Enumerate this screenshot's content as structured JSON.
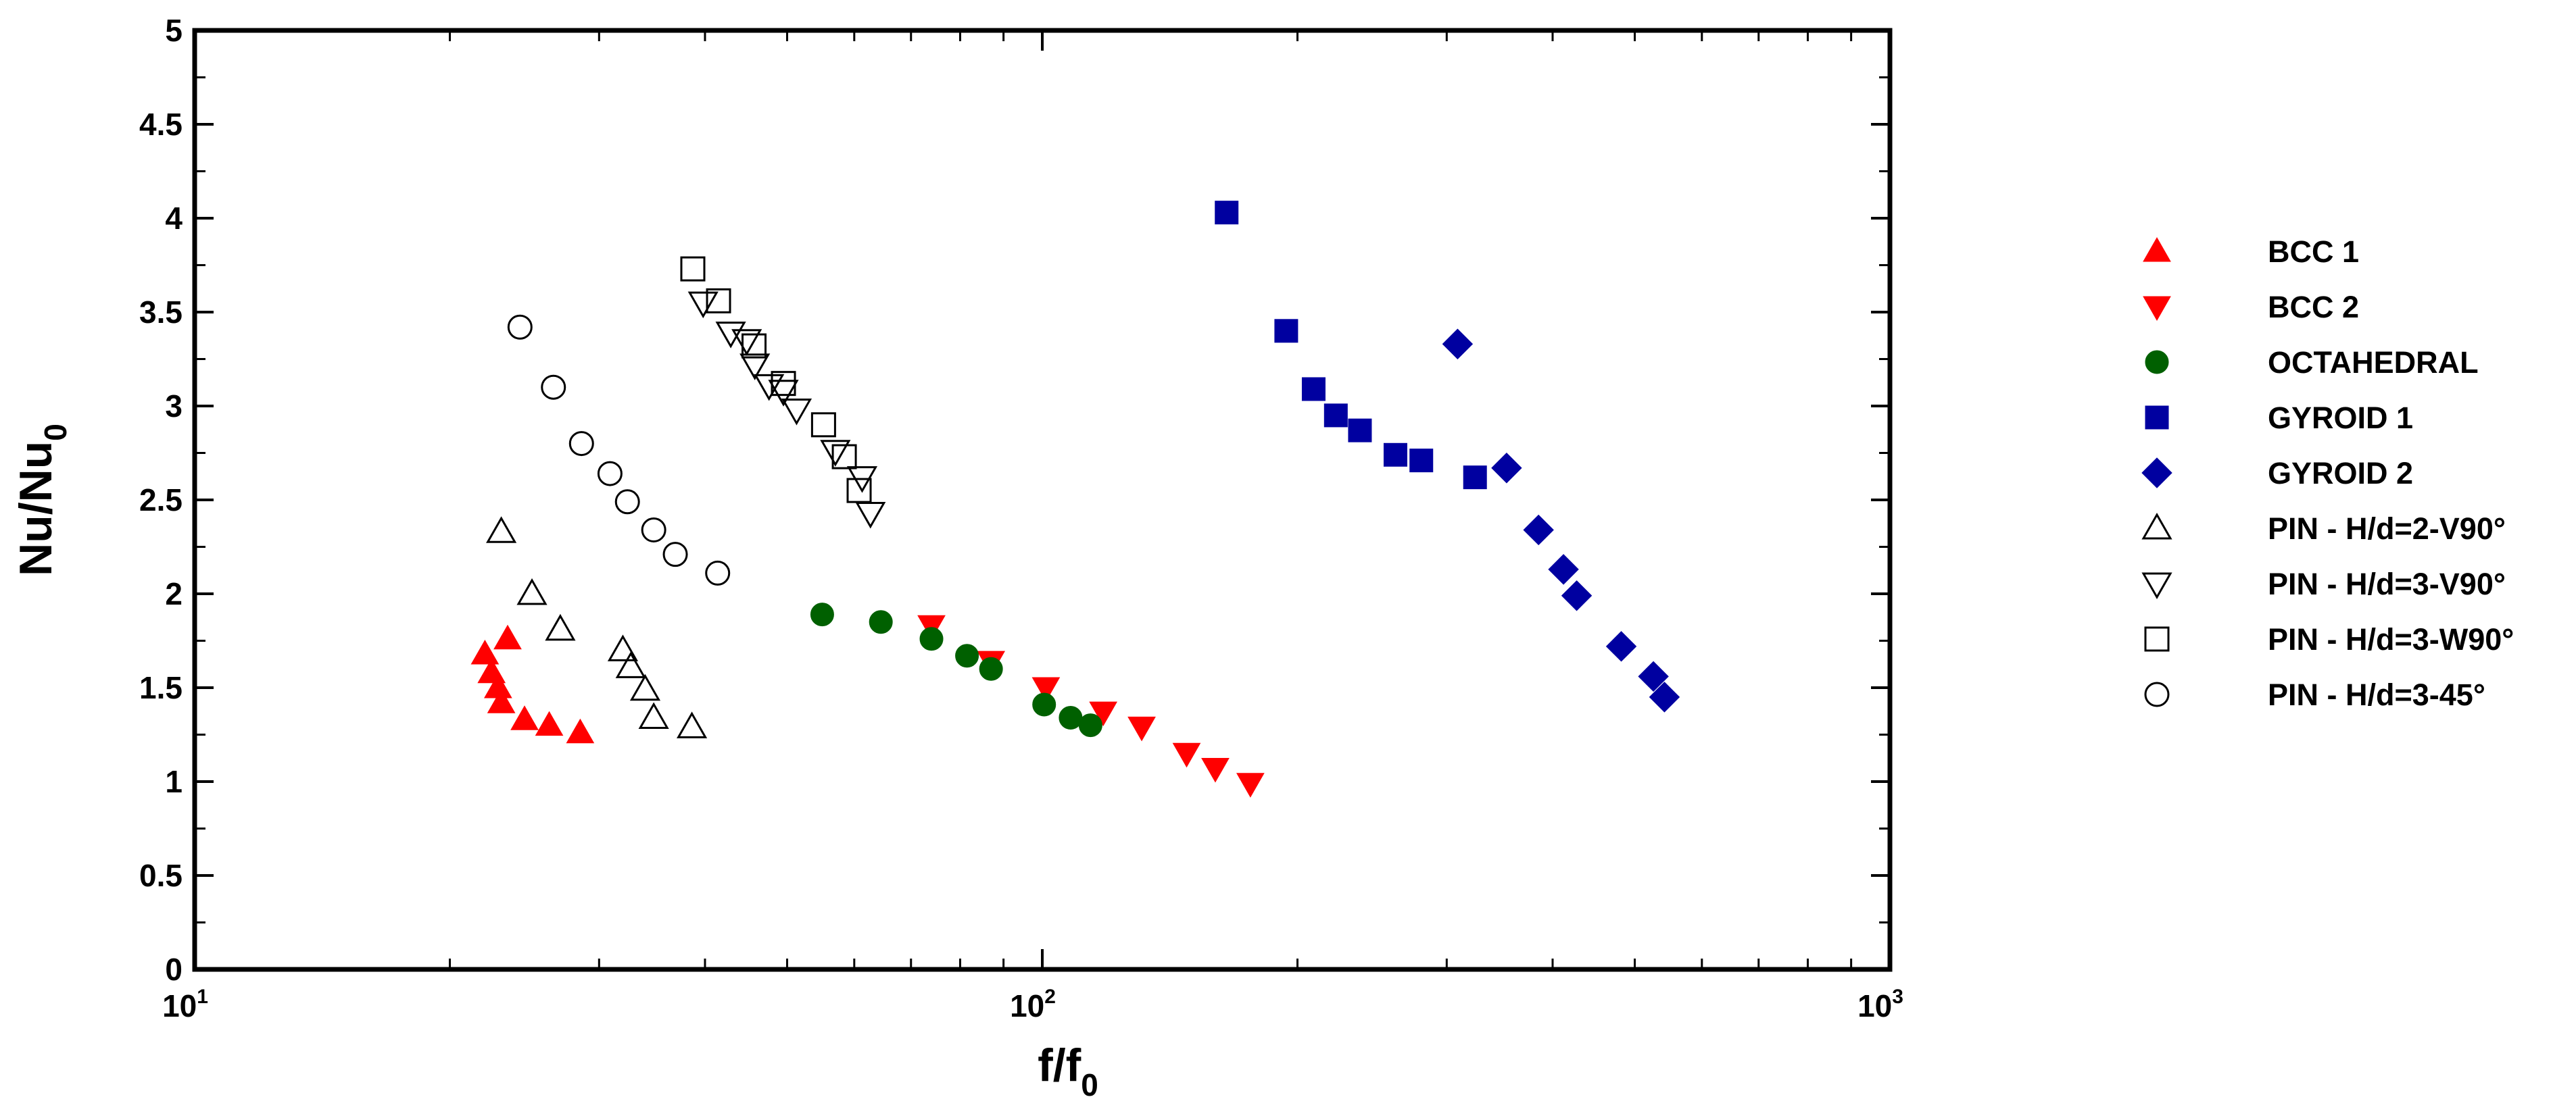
{
  "chart_data": {
    "type": "scatter",
    "x_scale": "log",
    "xlim": [
      10,
      1000
    ],
    "ylim": [
      0,
      5
    ],
    "grid": false,
    "legend_position": "right",
    "x_ticks": [
      {
        "value": 10,
        "base": "10",
        "exp": "1"
      },
      {
        "value": 100,
        "base": "10",
        "exp": "2"
      },
      {
        "value": 1000,
        "base": "10",
        "exp": "3"
      }
    ],
    "y_ticks": [
      {
        "value": 0,
        "label": "0"
      },
      {
        "value": 0.5,
        "label": "0.5"
      },
      {
        "value": 1,
        "label": "1"
      },
      {
        "value": 1.5,
        "label": "1.5"
      },
      {
        "value": 2,
        "label": "2"
      },
      {
        "value": 2.5,
        "label": "2.5"
      },
      {
        "value": 3,
        "label": "3"
      },
      {
        "value": 3.5,
        "label": "3.5"
      },
      {
        "value": 4,
        "label": "4"
      },
      {
        "value": 4.5,
        "label": "4.5"
      },
      {
        "value": 5,
        "label": "5"
      }
    ],
    "xlabel": {
      "base": "f/f",
      "sub": "0"
    },
    "ylabel": {
      "base": "Nu/Nu",
      "sub": "0"
    },
    "series": [
      {
        "name": "BCC 1",
        "marker": "triangle-up",
        "filled": true,
        "color": "#ff0000",
        "x": [
          22.0,
          22.4,
          22.8,
          23.0,
          23.4,
          24.5,
          26.2,
          28.5
        ],
        "y": [
          1.68,
          1.58,
          1.5,
          1.42,
          1.76,
          1.33,
          1.3,
          1.26
        ]
      },
      {
        "name": "BCC 2",
        "marker": "triangle-down",
        "filled": true,
        "color": "#ff0000",
        "x": [
          74,
          87,
          101,
          118,
          131,
          148,
          160,
          176
        ],
        "y": [
          1.83,
          1.64,
          1.5,
          1.37,
          1.29,
          1.15,
          1.07,
          0.99
        ]
      },
      {
        "name": "OCTAHEDRAL",
        "marker": "circle",
        "filled": true,
        "color": "#006000",
        "x": [
          55.0,
          64.5,
          74.0,
          81.5,
          87.0,
          100.5,
          108.0,
          114.0
        ],
        "y": [
          1.89,
          1.85,
          1.76,
          1.67,
          1.6,
          1.41,
          1.34,
          1.3
        ]
      },
      {
        "name": "GYROID 1",
        "marker": "square",
        "filled": true,
        "color": "#0000a0",
        "x": [
          165,
          194,
          209,
          222,
          237,
          261,
          280,
          324
        ],
        "y": [
          4.03,
          3.4,
          3.09,
          2.95,
          2.87,
          2.74,
          2.71,
          2.62
        ]
      },
      {
        "name": "GYROID 2",
        "marker": "diamond",
        "filled": true,
        "color": "#0000a0",
        "x": [
          309,
          353,
          385,
          412,
          427,
          482,
          526,
          542
        ],
        "y": [
          3.33,
          2.67,
          2.34,
          2.13,
          1.99,
          1.72,
          1.56,
          1.45
        ]
      },
      {
        "name": "PIN - H/d=2-V90°",
        "marker": "triangle-up",
        "filled": false,
        "color": "#000000",
        "x": [
          23.0,
          25.0,
          27.0,
          32.0,
          32.7,
          34.0,
          34.8,
          38.6
        ],
        "y": [
          2.33,
          2.0,
          1.81,
          1.7,
          1.61,
          1.49,
          1.34,
          1.29
        ]
      },
      {
        "name": "PIN - H/d=3-V90°",
        "marker": "triangle-down",
        "filled": false,
        "color": "#000000",
        "x": [
          39.8,
          42.9,
          44.8,
          45.8,
          47.6,
          49.5,
          51.3,
          57.0,
          61.3,
          62.7
        ],
        "y": [
          3.55,
          3.39,
          3.35,
          3.22,
          3.11,
          3.08,
          2.98,
          2.76,
          2.62,
          2.43
        ]
      },
      {
        "name": "PIN - H/d=3-W90°",
        "marker": "square",
        "filled": false,
        "color": "#000000",
        "x": [
          38.7,
          41.5,
          45.7,
          49.5,
          55.2,
          58.4,
          60.8
        ],
        "y": [
          3.73,
          3.56,
          3.32,
          3.12,
          2.9,
          2.73,
          2.55
        ]
      },
      {
        "name": "PIN - H/d=3-45°",
        "marker": "circle",
        "filled": false,
        "color": "#000000",
        "x": [
          24.2,
          26.5,
          28.6,
          30.9,
          32.4,
          34.8,
          36.9,
          41.4
        ],
        "y": [
          3.42,
          3.1,
          2.8,
          2.64,
          2.49,
          2.34,
          2.21,
          2.11
        ]
      }
    ]
  }
}
